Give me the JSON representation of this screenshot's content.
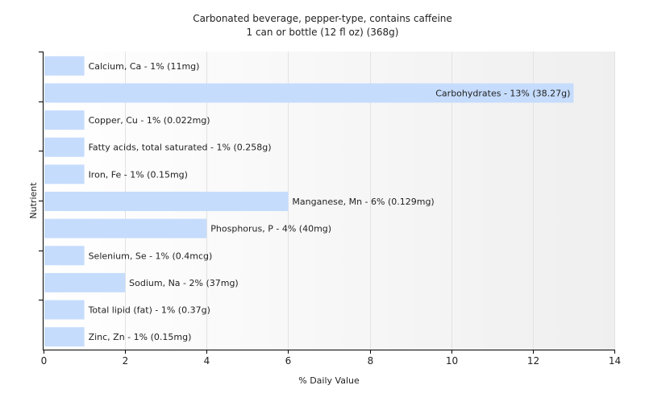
{
  "chart_data": {
    "type": "bar",
    "orientation": "horizontal",
    "title": "Carbonated beverage, pepper-type, contains caffeine",
    "subtitle": "1 can or bottle (12 fl oz) (368g)",
    "xlabel": "% Daily Value",
    "ylabel": "Nutrient",
    "xlim": [
      0,
      14
    ],
    "xticks": [
      0,
      2,
      4,
      6,
      8,
      10,
      12,
      14
    ],
    "grid": true,
    "bar_color": "#c6dcfd",
    "categories": [
      "Calcium, Ca",
      "Carbohydrates",
      "Copper, Cu",
      "Fatty acids, total saturated",
      "Iron, Fe",
      "Manganese, Mn",
      "Phosphorus, P",
      "Selenium, Se",
      "Sodium, Na",
      "Total lipid (fat)",
      "Zinc, Zn"
    ],
    "values": [
      1,
      13,
      1,
      1,
      1,
      6,
      4,
      1,
      2,
      1,
      1
    ],
    "labels": [
      "Calcium, Ca - 1% (11mg)",
      "Carbohydrates - 13% (38.27g)",
      "Copper, Cu - 1% (0.022mg)",
      "Fatty acids, total saturated - 1% (0.258g)",
      "Iron, Fe - 1% (0.15mg)",
      "Manganese, Mn - 6% (0.129mg)",
      "Phosphorus, P - 4% (40mg)",
      "Selenium, Se - 1% (0.4mcg)",
      "Sodium, Na - 2% (37mg)",
      "Total lipid (fat) - 1% (0.37g)",
      "Zinc, Zn - 1% (0.15mg)"
    ]
  }
}
